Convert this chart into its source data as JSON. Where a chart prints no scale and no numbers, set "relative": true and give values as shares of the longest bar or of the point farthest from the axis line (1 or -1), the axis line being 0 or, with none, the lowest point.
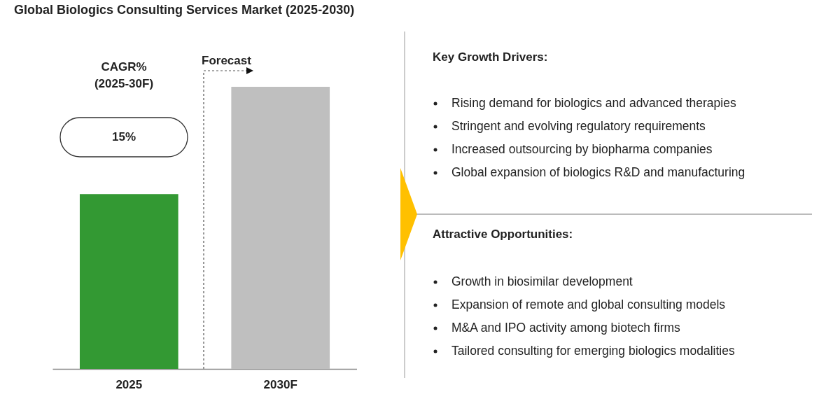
{
  "chart_data": {
    "type": "bar",
    "title": "Global Biologics Consulting Services Market (2025-2030)",
    "categories": [
      "2025",
      "2030F"
    ],
    "relative": true,
    "values": [
      0.62,
      1
    ],
    "colors": [
      "#339933",
      "#bfbfbf"
    ],
    "legend": false,
    "annotations": [
      "Forecast",
      "CAGR%",
      "(2025-30F)",
      "15%",
      "Key Growth Drivers:",
      "Rising demand for biologics and advanced therapies",
      "Stringent and evolving regulatory requirements",
      "Increased outsourcing by biopharma companies",
      "Global expansion of biologics R&D and manufacturing",
      "Attractive Opportunities:",
      "Growth in biosimilar development",
      "Expansion of remote and global consulting models",
      "M&A and IPO activity among biotech firms",
      "Tailored consulting for emerging biologics modalities"
    ]
  }
}
